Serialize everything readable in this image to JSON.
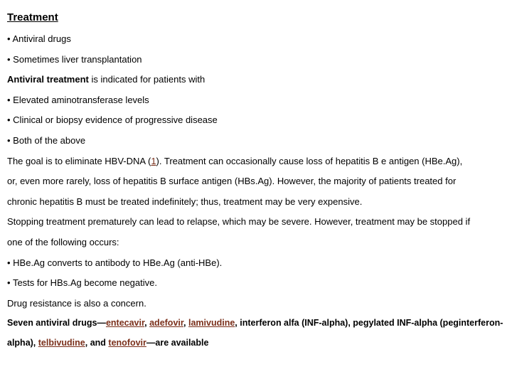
{
  "heading": "Treatment",
  "b1": "Antiviral drugs",
  "b2": "Sometimes liver transplantation",
  "p1_bold": "Antiviral treatment",
  "p1_rest": " is indicated for patients with",
  "b3": "Elevated aminotransferase levels",
  "b4": "Clinical or biopsy evidence of progressive disease",
  "b5": "Both of the above",
  "p2a": "The goal is to eliminate HBV-DNA (",
  "p2_link": "1",
  "p2b": "). Treatment can occasionally cause loss of hepatitis B e antigen (HBe.Ag),",
  "p3": "or, even more rarely, loss of hepatitis B surface antigen (HBs.Ag). However, the majority of patients treated for",
  "p4": "chronic hepatitis B must be treated indefinitely; thus, treatment may be very expensive.",
  "p5": "Stopping treatment prematurely can lead to relapse, which may be severe. However, treatment may be stopped if",
  "p6": "one of the following occurs:",
  "b6": "HBe.Ag converts to antibody to HBe.Ag (anti-HBe).",
  "b7": "Tests for HBs.Ag become negative.",
  "p7": "Drug resistance is also a concern.",
  "f1": "Seven antiviral drugs—",
  "d1": "entecavir",
  "c1": ", ",
  "d2": "adefovir",
  "c2": ", ",
  "d3": "lamivudine",
  "f2": ", interferon alfa (INF-alpha), pegylated INF-alpha (peginterferon-",
  "f3": "alpha), ",
  "d4": "telbivudine",
  "c3": ", and ",
  "d5": "tenofovir",
  "f4": "—are available"
}
